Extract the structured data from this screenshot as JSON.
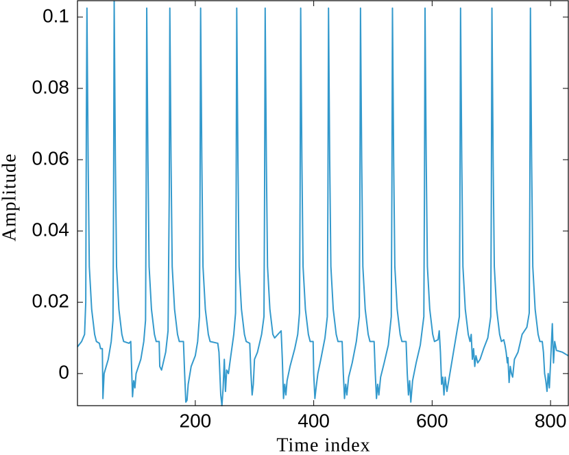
{
  "chart_data": {
    "type": "line",
    "x_label": "Time index",
    "y_label": "Amplitude",
    "color": "#3399cc",
    "xlim": [
      1,
      830
    ],
    "ylim": [
      -0.009,
      0.1046
    ],
    "xticks": [
      200,
      400,
      600,
      800
    ],
    "yticks": [
      0,
      0.02,
      0.04,
      0.06,
      0.08,
      0.1
    ],
    "x": [
      1,
      8,
      13,
      15,
      16,
      17,
      19,
      21,
      25,
      30,
      33,
      38,
      40,
      43,
      44,
      46,
      53,
      58,
      61,
      62,
      63,
      65,
      67,
      71,
      76,
      79,
      88,
      91,
      94,
      96,
      98,
      100,
      108,
      113,
      116,
      117,
      118,
      120,
      122,
      126,
      131,
      134,
      139,
      140,
      143,
      150,
      154,
      156,
      157,
      159,
      161,
      165,
      170,
      173,
      180,
      182,
      184,
      186,
      188,
      193,
      200,
      204,
      207,
      208,
      209,
      211,
      213,
      217,
      222,
      225,
      238,
      240,
      243,
      245,
      247,
      249,
      251,
      253,
      256,
      260,
      265,
      268,
      269,
      270,
      272,
      274,
      278,
      283,
      286,
      292,
      294,
      296,
      298,
      300,
      305,
      312,
      316,
      317,
      318,
      320,
      322,
      326,
      331,
      334,
      345,
      347,
      349,
      351,
      353,
      355,
      360,
      368,
      373,
      376,
      377,
      378,
      380,
      382,
      386,
      391,
      394,
      399,
      400,
      402,
      404,
      407,
      412,
      419,
      423,
      424,
      425,
      427,
      429,
      433,
      438,
      441,
      448,
      450,
      452,
      454,
      456,
      459,
      465,
      472,
      477,
      478,
      479,
      481,
      483,
      487,
      492,
      495,
      502,
      504,
      506,
      508,
      510,
      513,
      519,
      526,
      531,
      532,
      533,
      535,
      537,
      541,
      546,
      549,
      556,
      558,
      560,
      562,
      564,
      567,
      573,
      580,
      586,
      587,
      588,
      590,
      592,
      596,
      601,
      604,
      610,
      612,
      614,
      616,
      618,
      620,
      622,
      625,
      628,
      633,
      640,
      646,
      647,
      648,
      650,
      652,
      656,
      661,
      664,
      666,
      668,
      670,
      672,
      674,
      677,
      681,
      687,
      694,
      699,
      700,
      701,
      703,
      705,
      709,
      714,
      717,
      721,
      723,
      725,
      727,
      728,
      730,
      732,
      734,
      736,
      739,
      745,
      752,
      760,
      764,
      765,
      766,
      768,
      770,
      774,
      779,
      782,
      786,
      788,
      790,
      792,
      794,
      796,
      798,
      800,
      803,
      805,
      807,
      810,
      820,
      830
    ],
    "values": [
      0.0075,
      0.009,
      0.011,
      0.02,
      0.07,
      0.1025,
      0.06,
      0.03,
      0.018,
      0.011,
      0.009,
      0.0085,
      0.007,
      0.007,
      -0.007,
      0,
      0.004,
      0.009,
      0.015,
      0.05,
      0.1045,
      0.06,
      0.03,
      0.018,
      0.011,
      0.009,
      0.0085,
      0.009,
      -0.0065,
      -0.002,
      -0.004,
      0,
      0.004,
      0.009,
      0.015,
      0.05,
      0.1025,
      0.06,
      0.03,
      0.018,
      0.011,
      0.009,
      0.009,
      0.002,
      0.001,
      0.006,
      0.012,
      0.05,
      0.1025,
      0.06,
      0.03,
      0.018,
      0.011,
      0.009,
      0.009,
      0,
      -0.008,
      -0.0075,
      -0.003,
      0.002,
      0.005,
      0.009,
      0.016,
      0.05,
      0.1025,
      0.06,
      0.03,
      0.018,
      0.011,
      0.009,
      0.0085,
      0.006,
      -0.006,
      -0.009,
      -0.004,
      0.004,
      -0.005,
      0.001,
      0,
      0.005,
      0.011,
      0.017,
      0.05,
      0.1025,
      0.06,
      0.03,
      0.018,
      0.011,
      0.009,
      0.0085,
      0,
      -0.006,
      -0.003,
      0.004,
      0.006,
      0.011,
      0.016,
      0.05,
      0.1025,
      0.06,
      0.03,
      0.018,
      0.011,
      0.01,
      0.012,
      0.004,
      -0.007,
      -0.003,
      -0.006,
      -0.002,
      0.002,
      0.007,
      0.011,
      0.017,
      0.05,
      0.1025,
      0.06,
      0.03,
      0.018,
      0.011,
      0.009,
      0.009,
      0,
      -0.007,
      -0.004,
      0,
      0.004,
      0.01,
      0.016,
      0.05,
      0.1025,
      0.06,
      0.03,
      0.018,
      0.011,
      0.009,
      0.009,
      0,
      -0.007,
      -0.003,
      -0.006,
      -0.001,
      0.003,
      0.009,
      0.016,
      0.05,
      0.1025,
      0.06,
      0.03,
      0.018,
      0.011,
      0.009,
      0.009,
      0,
      -0.007,
      -0.003,
      -0.006,
      -0.001,
      0.003,
      0.008,
      0.016,
      0.05,
      0.1025,
      0.06,
      0.03,
      0.018,
      0.011,
      0.009,
      0.009,
      0,
      -0.006,
      -0.002,
      -0.008,
      -0.002,
      0.003,
      0.008,
      0.016,
      0.05,
      0.1025,
      0.06,
      0.03,
      0.018,
      0.011,
      0.009,
      0.0095,
      0.012,
      0.006,
      -0.003,
      -0.001,
      -0.006,
      -0.001,
      -0.005,
      -0.002,
      0.003,
      0.01,
      0.016,
      0.05,
      0.1025,
      0.06,
      0.03,
      0.018,
      0.011,
      0.009,
      0.011,
      0.004,
      0.007,
      0.002,
      0.005,
      0.003,
      0.004,
      0.007,
      0.01,
      0.016,
      0.05,
      0.1025,
      0.06,
      0.03,
      0.018,
      0.011,
      0.009,
      0.0095,
      0.008,
      0.006,
      0.003,
      0.0045,
      -0.0025,
      0.002,
      0,
      -0.001,
      0.004,
      0.006,
      0.011,
      0.013,
      0.017,
      0.05,
      0.1025,
      0.06,
      0.03,
      0.018,
      0.011,
      0.009,
      0.009,
      0.006,
      0,
      -0.002,
      -0.005,
      0,
      -0.004,
      0.003,
      0.014,
      0.003,
      0.009,
      0.0065,
      0.006,
      0.005
    ]
  }
}
